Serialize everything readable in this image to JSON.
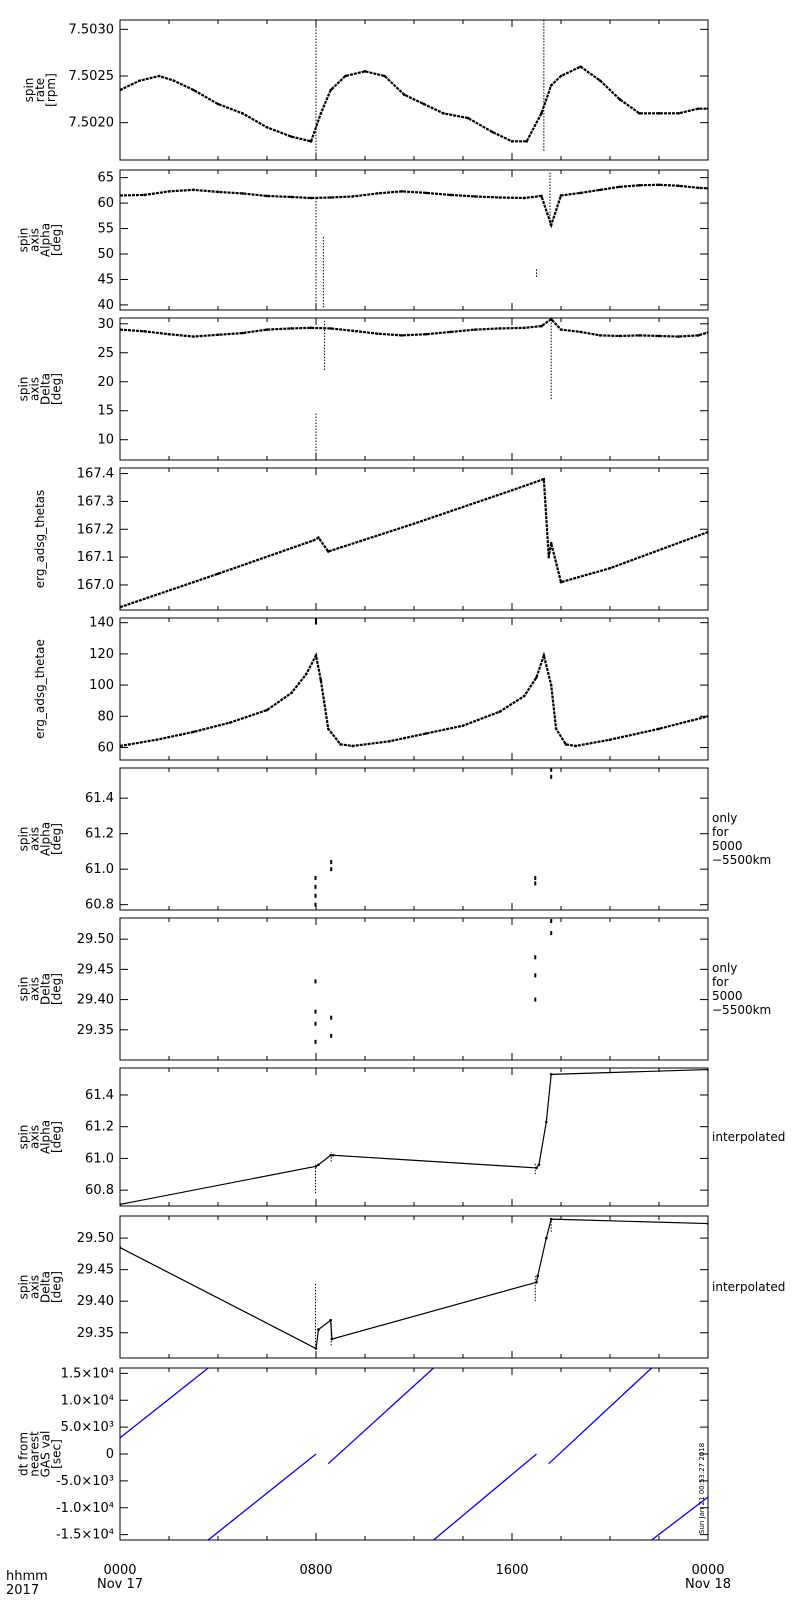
{
  "chart_data": [
    {
      "type": "scatter",
      "ylabel": [
        "spin",
        "rate",
        "[rpm]"
      ],
      "ylim": [
        7.5016,
        7.5031
      ],
      "yticks": [
        "7.5020",
        "7.5025",
        "7.5030"
      ],
      "ytick_values": [
        7.502,
        7.5025,
        7.503
      ],
      "x_hours": [
        0.0,
        0.8,
        1.6,
        2.2,
        3.0,
        4.0,
        5.0,
        6.0,
        7.0,
        7.8,
        8.2,
        8.6,
        9.2,
        10.0,
        10.8,
        11.6,
        12.4,
        13.2,
        14.2,
        15.2,
        16.0,
        16.6,
        17.2,
        17.6,
        18.0,
        18.8,
        19.6,
        20.4,
        21.2,
        22.0,
        22.8,
        23.6,
        24.0
      ],
      "values": [
        7.50235,
        7.50245,
        7.5025,
        7.50245,
        7.50235,
        7.5022,
        7.5021,
        7.50195,
        7.50185,
        7.5018,
        7.5021,
        7.50235,
        7.5025,
        7.50255,
        7.5025,
        7.5023,
        7.5022,
        7.5021,
        7.50205,
        7.5019,
        7.5018,
        7.5018,
        7.5021,
        7.5024,
        7.5025,
        7.5026,
        7.50245,
        7.50225,
        7.5021,
        7.5021,
        7.5021,
        7.50215,
        7.50215
      ],
      "spikes": [
        {
          "x": 8.0,
          "from": 7.5016,
          "to": 7.5031
        },
        {
          "x": 17.3,
          "from": 7.5017,
          "to": 7.5031
        }
      ],
      "color": "#000000"
    },
    {
      "type": "scatter",
      "ylabel": [
        "spin",
        "axis",
        "Alpha",
        "[deg]"
      ],
      "ylim": [
        39.0,
        66.5
      ],
      "yticks": [
        "40",
        "45",
        "50",
        "55",
        "60",
        "65"
      ],
      "ytick_values": [
        40,
        45,
        50,
        55,
        60,
        65
      ],
      "x_hours": [
        0.0,
        1.0,
        2.0,
        3.0,
        4.0,
        5.0,
        6.0,
        7.0,
        7.8,
        8.6,
        9.5,
        10.5,
        11.5,
        12.5,
        13.5,
        14.5,
        15.5,
        16.5,
        17.2,
        17.6,
        18.0,
        18.8,
        19.6,
        20.4,
        21.2,
        22.0,
        22.8,
        23.6,
        24.0
      ],
      "values": [
        61.5,
        61.6,
        62.3,
        62.6,
        62.2,
        61.9,
        61.4,
        61.2,
        61.0,
        61.1,
        61.3,
        61.9,
        62.3,
        62.0,
        61.6,
        61.3,
        61.1,
        61.0,
        61.4,
        55.7,
        61.5,
        62.0,
        62.6,
        63.2,
        63.5,
        63.6,
        63.4,
        63.0,
        62.9
      ],
      "spikes": [
        {
          "x": 8.0,
          "from": 39.5,
          "to": 61.0
        },
        {
          "x": 8.3,
          "from": 39.5,
          "to": 53.5
        },
        {
          "x": 17.0,
          "from": 45.5,
          "to": 47.0
        },
        {
          "x": 17.55,
          "from": 55.7,
          "to": 66.0
        }
      ],
      "color": "#000000"
    },
    {
      "type": "scatter",
      "ylabel": [
        "spin",
        "axis",
        "Delta",
        "[deg]"
      ],
      "ylim": [
        6.5,
        31.0
      ],
      "yticks": [
        "10",
        "15",
        "20",
        "25",
        "30"
      ],
      "ytick_values": [
        10,
        15,
        20,
        25,
        30
      ],
      "x_hours": [
        0.0,
        1.0,
        2.0,
        3.0,
        4.0,
        5.0,
        6.0,
        7.0,
        7.8,
        8.6,
        9.5,
        10.5,
        11.5,
        12.5,
        13.5,
        14.5,
        15.5,
        16.5,
        17.2,
        17.6,
        18.0,
        18.8,
        19.6,
        20.4,
        21.2,
        22.0,
        22.8,
        23.6,
        24.0
      ],
      "values": [
        29.0,
        28.7,
        28.2,
        27.8,
        28.1,
        28.4,
        29.0,
        29.2,
        29.3,
        29.2,
        28.8,
        28.3,
        28.0,
        28.2,
        28.6,
        29.0,
        29.2,
        29.3,
        29.6,
        30.8,
        29.0,
        28.6,
        28.0,
        27.9,
        28.0,
        27.9,
        27.8,
        28.0,
        28.5
      ],
      "spikes": [
        {
          "x": 8.0,
          "from": 6.5,
          "to": 14.5
        },
        {
          "x": 8.35,
          "from": 22.0,
          "to": 30.5
        },
        {
          "x": 17.6,
          "from": 17.0,
          "to": 30.8
        }
      ],
      "color": "#000000"
    },
    {
      "type": "scatter",
      "ylabel": [
        "erg_adsg_thetas"
      ],
      "ylim": [
        166.91,
        167.42
      ],
      "yticks": [
        "167.0",
        "167.1",
        "167.2",
        "167.3",
        "167.4"
      ],
      "ytick_values": [
        167.0,
        167.1,
        167.2,
        167.3,
        167.4
      ],
      "x_hours": [
        0.0,
        4.0,
        7.9,
        8.1,
        8.5,
        12.0,
        16.0,
        17.3,
        17.5,
        17.6,
        18.0,
        20.0,
        24.0
      ],
      "values": [
        166.92,
        167.04,
        167.16,
        167.17,
        167.12,
        167.22,
        167.34,
        167.38,
        167.1,
        167.15,
        167.01,
        167.06,
        167.19
      ],
      "color": "#000000"
    },
    {
      "type": "scatter",
      "ylabel": [
        "erg_adsg_thetae"
      ],
      "ylim": [
        52,
        143
      ],
      "yticks": [
        "60",
        "80",
        "100",
        "120",
        "140"
      ],
      "ytick_values": [
        60,
        80,
        100,
        120,
        140
      ],
      "x_hours": [
        0.0,
        1.5,
        3.0,
        4.5,
        6.0,
        7.0,
        7.6,
        8.0,
        8.2,
        8.5,
        9.0,
        9.5,
        11.0,
        12.5,
        14.0,
        15.5,
        16.5,
        17.0,
        17.3,
        17.6,
        17.8,
        18.2,
        18.6,
        20.0,
        22.0,
        24.0
      ],
      "values": [
        61,
        65,
        70,
        76,
        84,
        95,
        107,
        119,
        103,
        72,
        62,
        61,
        64,
        69,
        74,
        83,
        93,
        105,
        119,
        100,
        72,
        62,
        61,
        65,
        72,
        80
      ],
      "color": "#000000",
      "annotations": [
        {
          "x": 8.0,
          "y": 141
        }
      ]
    },
    {
      "type": "scatter",
      "ylabel": [
        "spin",
        "axis",
        "Alpha",
        "[deg]"
      ],
      "ylim": [
        60.77,
        61.57
      ],
      "yticks": [
        "60.8",
        "61.0",
        "61.2",
        "61.4"
      ],
      "ytick_values": [
        60.8,
        61.0,
        61.2,
        61.4
      ],
      "points": [
        [
          7.98,
          60.8
        ],
        [
          7.98,
          60.85
        ],
        [
          7.98,
          60.9
        ],
        [
          7.98,
          60.95
        ],
        [
          8.62,
          61.0
        ],
        [
          8.62,
          61.04
        ],
        [
          16.95,
          60.92
        ],
        [
          16.95,
          60.95
        ],
        [
          17.6,
          61.52
        ],
        [
          17.6,
          61.56
        ]
      ],
      "note": [
        "only",
        "for",
        "5000",
        "−5500km"
      ],
      "color": "#000000"
    },
    {
      "type": "scatter",
      "ylabel": [
        "spin",
        "axis",
        "Delta",
        "[deg]"
      ],
      "ylim": [
        29.3,
        29.535
      ],
      "yticks": [
        "29.35",
        "29.40",
        "29.45",
        "29.50"
      ],
      "ytick_values": [
        29.35,
        29.4,
        29.45,
        29.5
      ],
      "points": [
        [
          7.98,
          29.33
        ],
        [
          7.98,
          29.36
        ],
        [
          7.98,
          29.38
        ],
        [
          7.98,
          29.43
        ],
        [
          8.62,
          29.34
        ],
        [
          8.62,
          29.37
        ],
        [
          16.95,
          29.4
        ],
        [
          16.95,
          29.44
        ],
        [
          16.95,
          29.47
        ],
        [
          17.6,
          29.51
        ],
        [
          17.6,
          29.53
        ]
      ],
      "note": [
        "only",
        "for",
        "5000",
        "−5500km"
      ],
      "color": "#000000"
    },
    {
      "type": "line",
      "ylabel": [
        "spin",
        "axis",
        "Alpha",
        "[deg]"
      ],
      "ylim": [
        60.7,
        61.57
      ],
      "yticks": [
        "60.8",
        "61.0",
        "61.2",
        "61.4"
      ],
      "ytick_values": [
        60.8,
        61.0,
        61.2,
        61.4
      ],
      "x_hours": [
        0.0,
        8.0,
        8.1,
        8.6,
        8.7,
        17.0,
        17.1,
        17.4,
        17.6,
        24.0
      ],
      "values": [
        60.71,
        60.95,
        60.96,
        61.02,
        61.02,
        60.94,
        60.96,
        61.23,
        61.53,
        61.56
      ],
      "spikes": [
        {
          "x": 7.98,
          "from": 60.78,
          "to": 60.96
        },
        {
          "x": 8.62,
          "from": 60.98,
          "to": 61.04
        },
        {
          "x": 16.95,
          "from": 60.9,
          "to": 60.97
        }
      ],
      "note": [
        "interpolated"
      ],
      "color": "#000000"
    },
    {
      "type": "line",
      "ylabel": [
        "spin",
        "axis",
        "Delta",
        "[deg]"
      ],
      "ylim": [
        29.31,
        29.535
      ],
      "yticks": [
        "29.35",
        "29.40",
        "29.45",
        "29.50"
      ],
      "ytick_values": [
        29.35,
        29.4,
        29.45,
        29.5
      ],
      "x_hours": [
        0.0,
        8.0,
        8.1,
        8.6,
        8.65,
        17.0,
        17.05,
        17.4,
        17.6,
        24.0
      ],
      "values": [
        29.485,
        29.325,
        29.355,
        29.37,
        29.34,
        29.43,
        29.44,
        29.5,
        29.53,
        29.523
      ],
      "spikes": [
        {
          "x": 7.98,
          "from": 29.33,
          "to": 29.43
        },
        {
          "x": 8.62,
          "from": 29.33,
          "to": 29.37
        },
        {
          "x": 16.95,
          "from": 29.4,
          "to": 29.44
        },
        {
          "x": 17.6,
          "from": 29.51,
          "to": 29.53
        }
      ],
      "note": [
        "interpolated"
      ],
      "color": "#000000"
    },
    {
      "type": "line",
      "ylabel": [
        "dt from",
        "nearest",
        "GAS val",
        "[sec]"
      ],
      "ylim": [
        -16000,
        16000
      ],
      "yticks": [
        "-1.5×10⁴",
        "-1.0×10⁴",
        "-5.0×10³",
        "0",
        "5.0×10³",
        "1.0×10⁴",
        "1.5×10⁴"
      ],
      "ytick_values": [
        -15000,
        -10000,
        -5000,
        0,
        5000,
        10000,
        15000
      ],
      "segments": [
        {
          "x": [
            0.0,
            3.6
          ],
          "y": [
            3000,
            16000
          ]
        },
        {
          "x": [
            3.6,
            8.0
          ],
          "y": [
            -16000,
            0
          ]
        },
        {
          "x": [
            8.5,
            12.8
          ],
          "y": [
            -1800,
            16000
          ]
        },
        {
          "x": [
            12.8,
            17.0
          ],
          "y": [
            -16000,
            0
          ]
        },
        {
          "x": [
            17.5,
            21.7
          ],
          "y": [
            -1800,
            16000
          ]
        },
        {
          "x": [
            21.7,
            24.0
          ],
          "y": [
            -16000,
            -8000
          ]
        }
      ],
      "side_label": "Sun Jan 21 00:53:27 2018",
      "color": "#0000ff"
    }
  ],
  "x_axis": {
    "xlim": [
      0,
      24
    ],
    "tick_hours": [
      0,
      8,
      16,
      24
    ],
    "tick_labels": [
      "0000",
      "0800",
      "1600",
      "0000"
    ],
    "date_labels": [
      {
        "hour": 0,
        "text": "Nov 17"
      },
      {
        "hour": 24,
        "text": "Nov 18"
      }
    ],
    "format_label": "hhmm",
    "year_label": "2017"
  }
}
